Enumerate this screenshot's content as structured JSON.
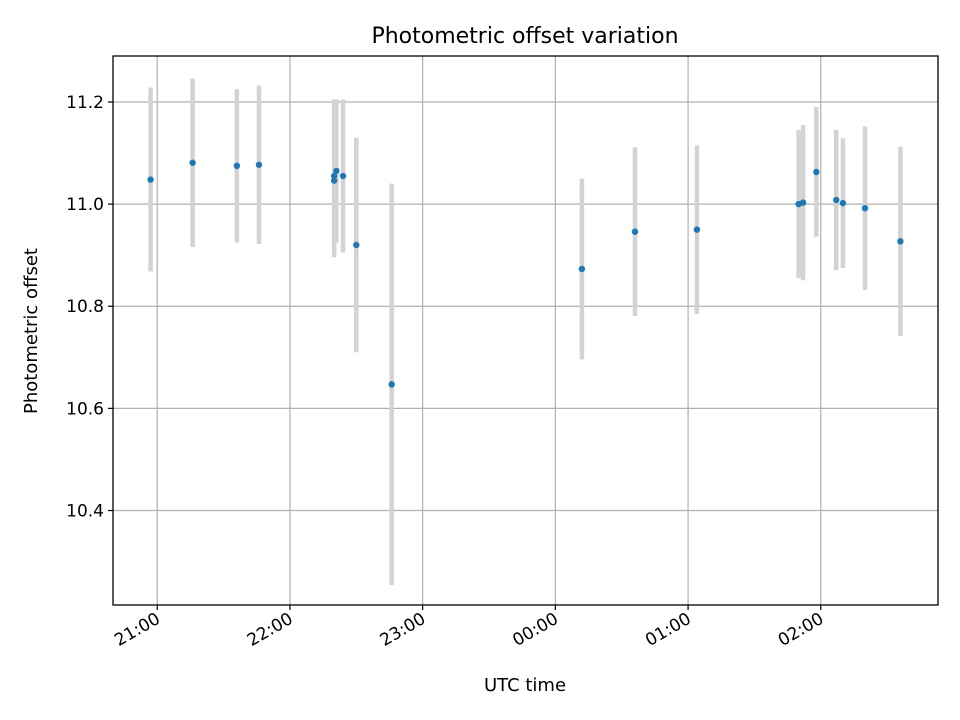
{
  "chart_data": {
    "type": "scatter",
    "title": "Photometric offset variation",
    "xlabel": "UTC time",
    "ylabel": "Photometric offset",
    "x_axis_kind": "time",
    "x_ticks": [
      "21:00",
      "22:00",
      "23:00",
      "00:00",
      "01:00",
      "02:00"
    ],
    "y_ticks": [
      "10.4",
      "10.6",
      "10.8",
      "11.0",
      "11.2"
    ],
    "ylim": [
      10.215,
      11.29
    ],
    "xlim": [
      "20:40",
      "02:53"
    ],
    "grid": true,
    "colors": {
      "points": "#1f77b4",
      "errorbars": "#d3d3d3",
      "grid": "#b0b0b0"
    },
    "points": [
      {
        "x": "20:57",
        "y": 11.048,
        "err": 0.18
      },
      {
        "x": "21:16",
        "y": 11.081,
        "err": 0.165
      },
      {
        "x": "21:36",
        "y": 11.075,
        "err": 0.15
      },
      {
        "x": "21:46",
        "y": 11.077,
        "err": 0.155
      },
      {
        "x": "22:20",
        "y": 11.055,
        "err": 0.15
      },
      {
        "x": "22:20",
        "y": 11.046,
        "err": 0.15
      },
      {
        "x": "22:21",
        "y": 11.065,
        "err": 0.14
      },
      {
        "x": "22:24",
        "y": 11.055,
        "err": 0.15
      },
      {
        "x": "22:30",
        "y": 10.92,
        "err": 0.21
      },
      {
        "x": "22:46",
        "y": 10.647,
        "err": 0.393
      },
      {
        "x": "00:12",
        "y": 10.873,
        "err": 0.177
      },
      {
        "x": "00:36",
        "y": 10.946,
        "err": 0.165
      },
      {
        "x": "01:04",
        "y": 10.95,
        "err": 0.165
      },
      {
        "x": "01:50",
        "y": 11.0,
        "err": 0.145
      },
      {
        "x": "01:52",
        "y": 11.003,
        "err": 0.152
      },
      {
        "x": "01:58",
        "y": 11.063,
        "err": 0.127
      },
      {
        "x": "02:07",
        "y": 11.008,
        "err": 0.137
      },
      {
        "x": "02:10",
        "y": 11.002,
        "err": 0.127
      },
      {
        "x": "02:20",
        "y": 10.992,
        "err": 0.16
      },
      {
        "x": "02:36",
        "y": 10.927,
        "err": 0.185
      }
    ]
  }
}
